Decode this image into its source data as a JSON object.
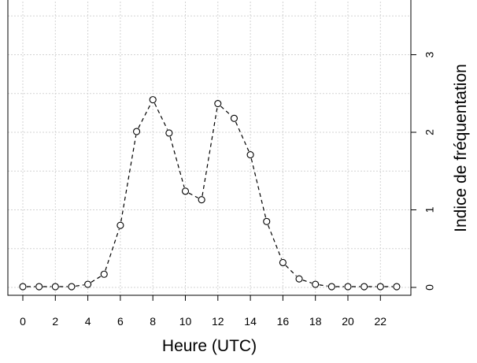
{
  "chart_data": {
    "type": "line",
    "xlabel": "Heure (UTC)",
    "ylabel": "Indice de fréquentation",
    "x_ticks": [
      "0",
      "2",
      "4",
      "6",
      "8",
      "10",
      "12",
      "14",
      "16",
      "18",
      "20",
      "22"
    ],
    "y_ticks": [
      "0",
      "1",
      "2",
      "3"
    ],
    "xlim": [
      0,
      23
    ],
    "ylim": [
      0,
      3.6
    ],
    "x": [
      0,
      1,
      2,
      3,
      4,
      5,
      6,
      7,
      8,
      9,
      10,
      11,
      12,
      13,
      14,
      15,
      16,
      17,
      18,
      19,
      20,
      21,
      22,
      23
    ],
    "y": [
      0.01,
      0.01,
      0.01,
      0.01,
      0.04,
      0.17,
      0.8,
      2.01,
      2.42,
      1.99,
      1.24,
      1.13,
      2.37,
      2.18,
      1.71,
      0.85,
      0.32,
      0.11,
      0.04,
      0.01,
      0.01,
      0.01,
      0.01,
      0.01
    ],
    "grid": true,
    "line_style": "dashed",
    "marker": "open-circle",
    "y_axis_side": "right"
  }
}
